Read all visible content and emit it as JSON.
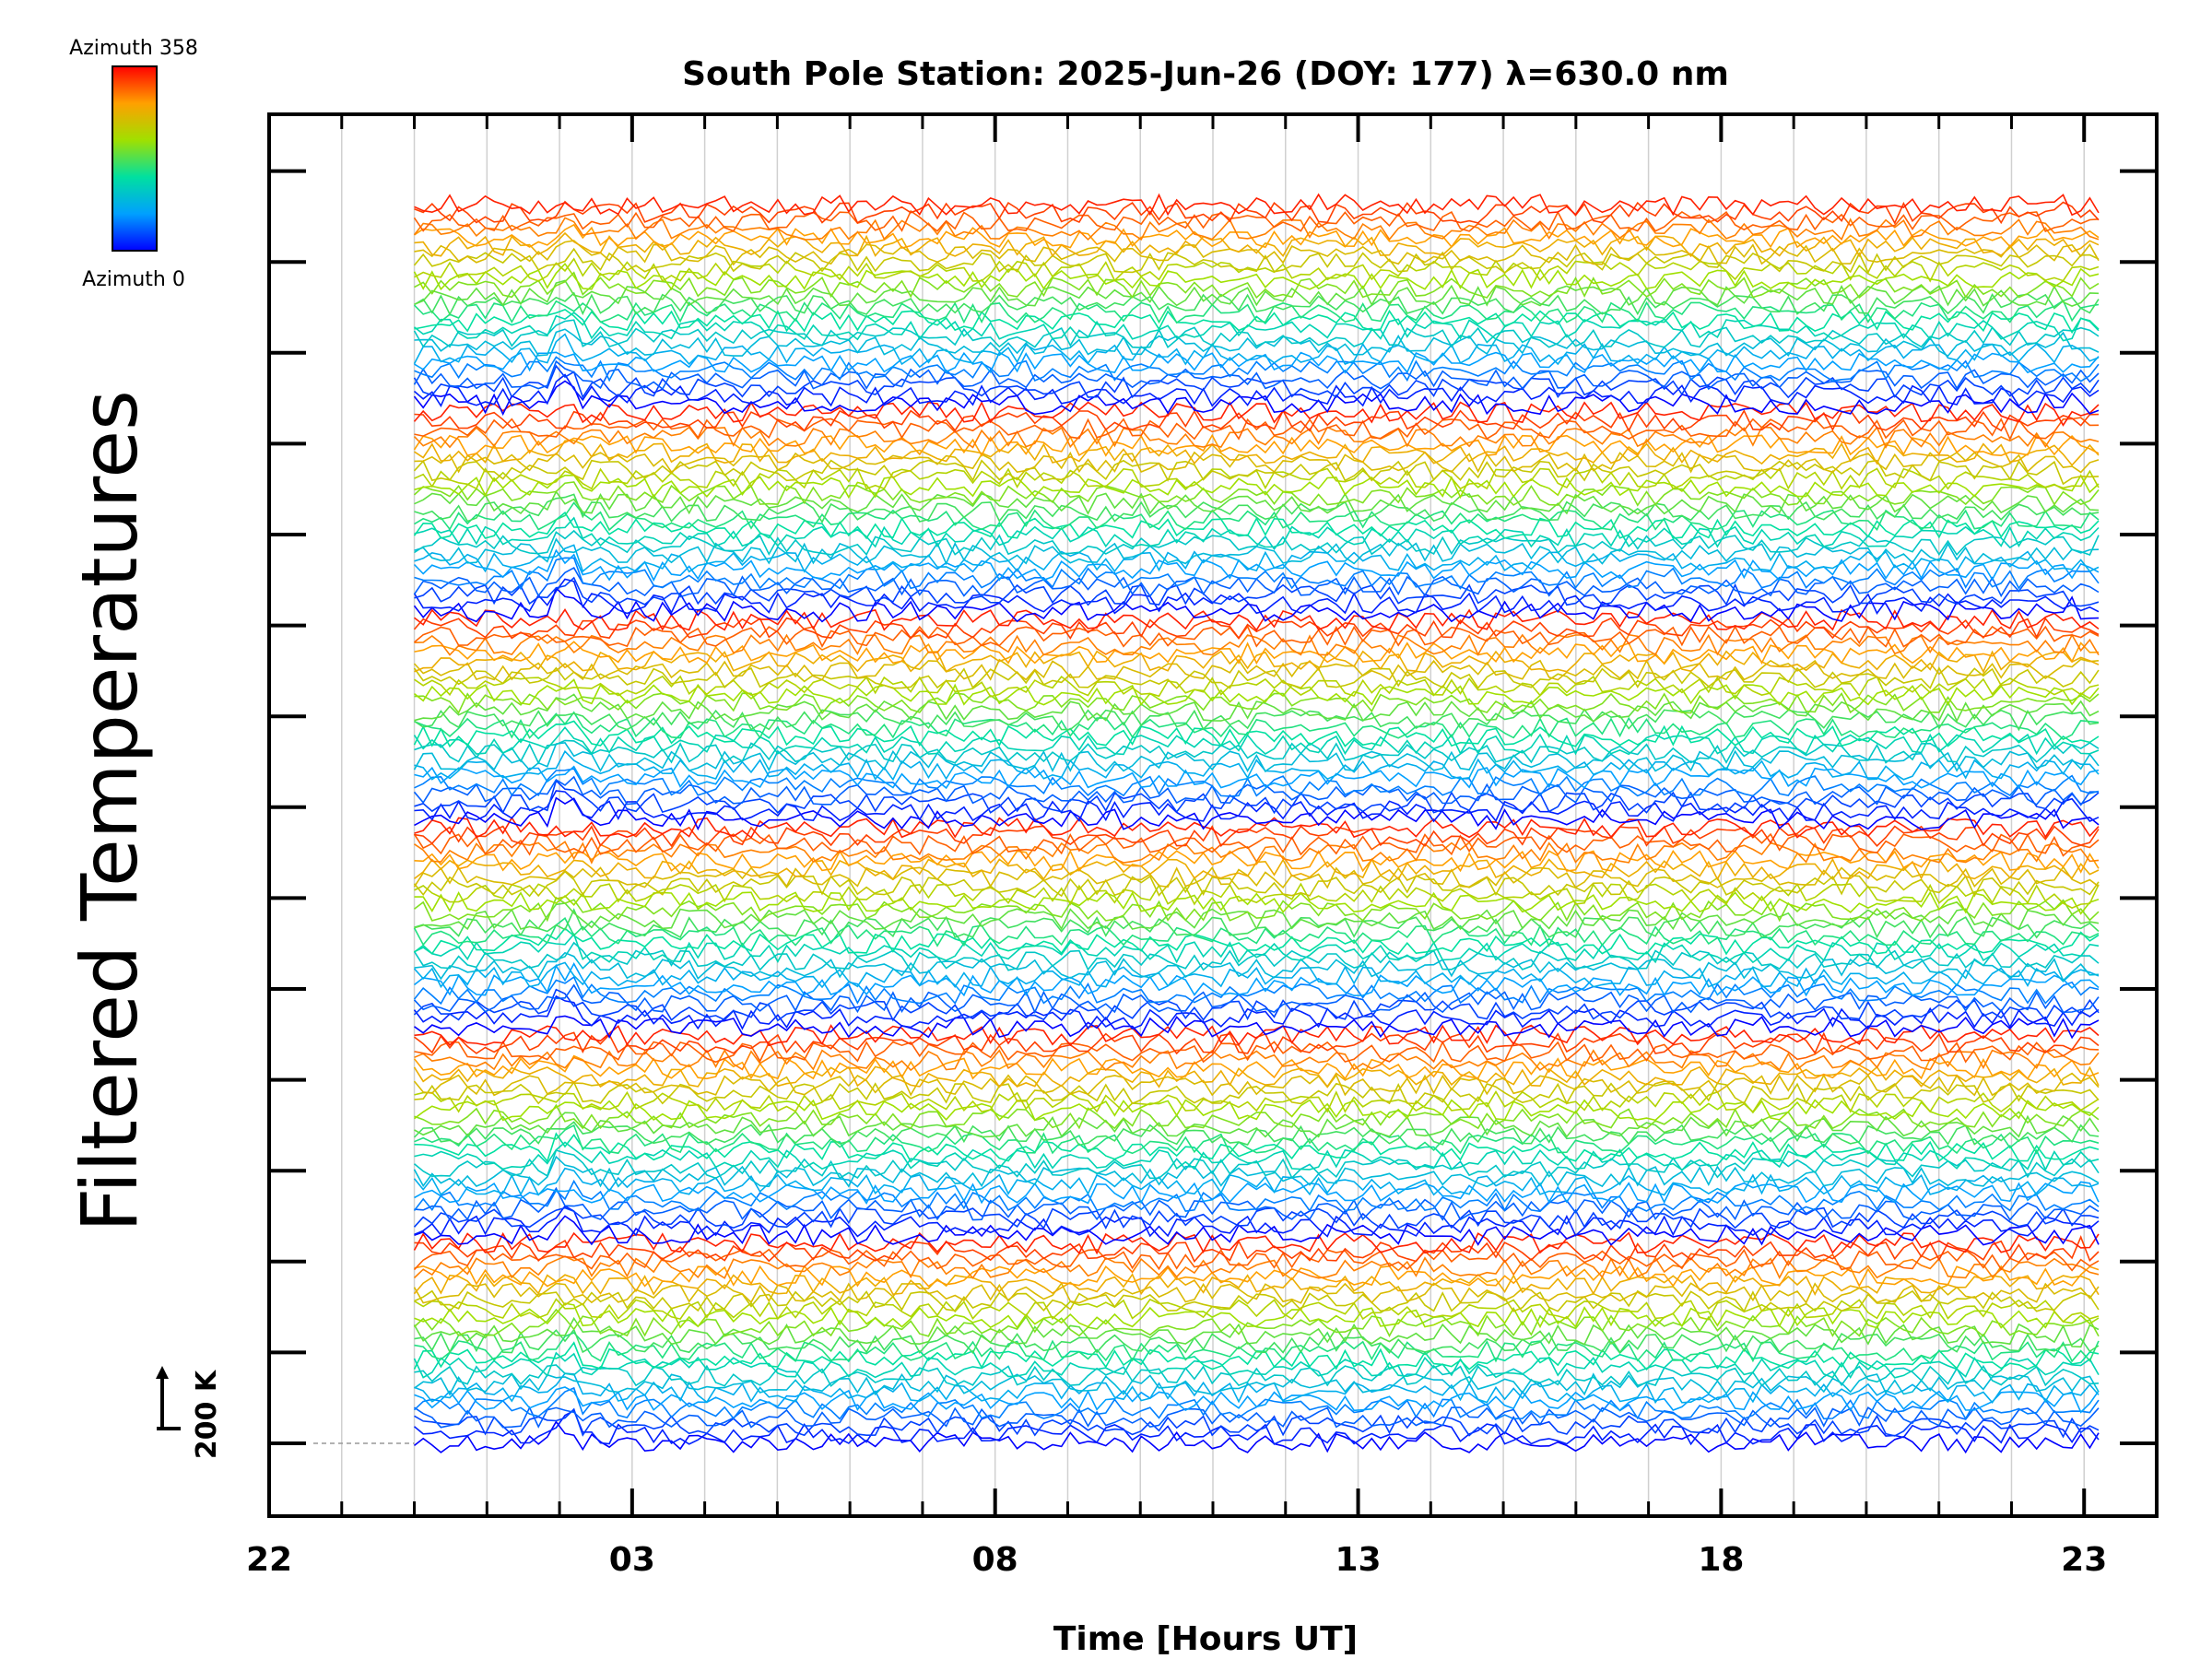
{
  "chart_data": {
    "type": "line",
    "title": "South Pole Station: 2025-Jun-26 (DOY: 177) λ=630.0 nm",
    "xlabel": "Time [Hours UT]",
    "ylabel": "Filtered Temperatures",
    "x_ticks": [
      {
        "hour": 22,
        "label": "22"
      },
      {
        "hour": 27,
        "label": "03"
      },
      {
        "hour": 32,
        "label": "08"
      },
      {
        "hour": 37,
        "label": "13"
      },
      {
        "hour": 42,
        "label": "18"
      },
      {
        "hour": 47,
        "label": "23"
      }
    ],
    "xlim": [
      22,
      48
    ],
    "data_start_hour": 24,
    "data_end_hour": 47.2,
    "minor_tick_step_hours": 1,
    "scale_bar": {
      "label": "200 K",
      "value_k": 200
    },
    "colorbar": {
      "top_label": "Azimuth 358",
      "bottom_label": "Azimuth 0",
      "min": 0,
      "max": 358
    },
    "num_traces": 150,
    "azimuth_cycles": 6,
    "gridlines": true
  },
  "colors": {
    "axis": "#000000",
    "grid": "#d0d0d0"
  }
}
